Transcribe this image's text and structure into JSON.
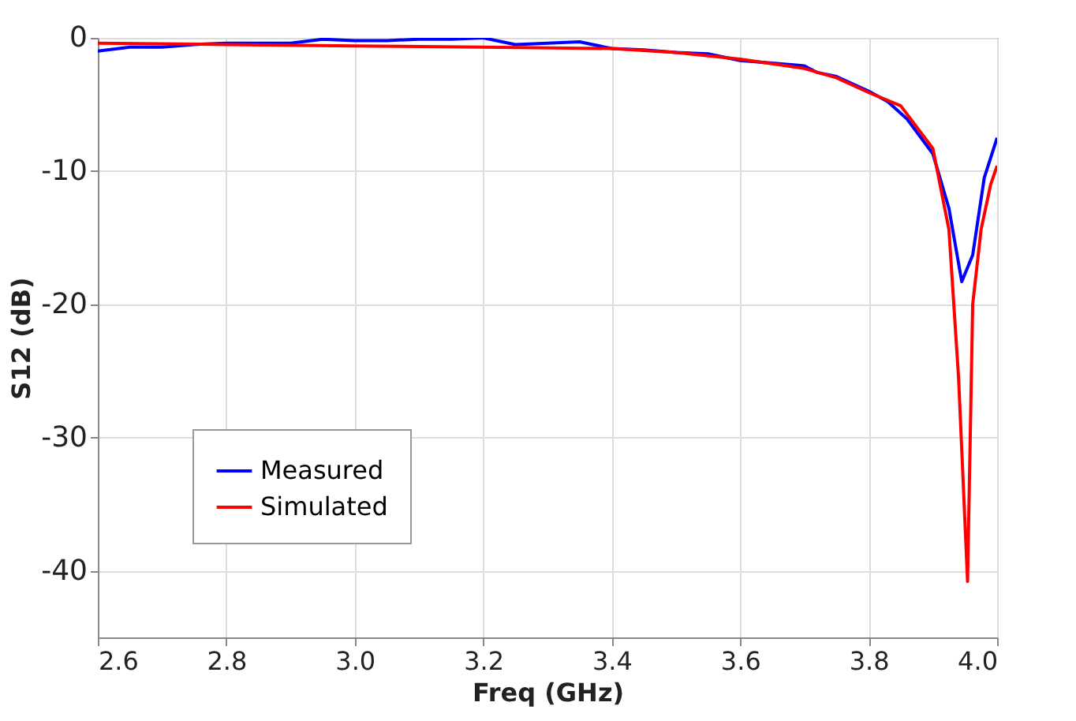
{
  "chart_data": {
    "type": "line",
    "xlabel": "Freq (GHz)",
    "ylabel": "S12 (dB)",
    "xlim": [
      2.6,
      4.0
    ],
    "xticks": [
      {
        "value": 2.6,
        "label": "2.6"
      },
      {
        "value": 2.8,
        "label": "2.8"
      },
      {
        "value": 3.0,
        "label": "3.0"
      },
      {
        "value": 3.2,
        "label": "3.2"
      },
      {
        "value": 3.4,
        "label": "3.4"
      },
      {
        "value": 3.6,
        "label": "3.6"
      },
      {
        "value": 3.8,
        "label": "3.8"
      },
      {
        "value": 4.0,
        "label": "4.0"
      }
    ],
    "ylim": [
      -45,
      0
    ],
    "yticks": [
      0,
      -10,
      -20,
      -30,
      -40
    ],
    "grid": true,
    "legend": "bottom left",
    "line_style": "solid",
    "marker": "none",
    "series": [
      {
        "name": "Measured",
        "color": "#0000ff",
        "x": [
          2.6,
          2.65,
          2.7,
          2.75,
          2.8,
          2.85,
          2.9,
          2.95,
          3.0,
          3.05,
          3.1,
          3.15,
          3.2,
          3.25,
          3.3,
          3.35,
          3.4,
          3.45,
          3.5,
          3.55,
          3.6,
          3.65,
          3.7,
          3.72,
          3.75,
          3.8,
          3.83,
          3.86,
          3.9,
          3.925,
          3.945,
          3.962,
          3.98,
          4.0
        ],
        "values": [
          -1.0,
          -0.7,
          -0.7,
          -0.5,
          -0.4,
          -0.4,
          -0.4,
          -0.1,
          -0.2,
          -0.2,
          -0.1,
          -0.1,
          0.0,
          -0.5,
          -0.4,
          -0.3,
          -0.8,
          -0.9,
          -1.1,
          -1.2,
          -1.7,
          -1.9,
          -2.1,
          -2.6,
          -2.9,
          -4.0,
          -4.8,
          -6.1,
          -8.7,
          -12.8,
          -18.3,
          -16.3,
          -10.5,
          -7.5
        ]
      },
      {
        "name": "Simulated",
        "color": "#ff0000",
        "x": [
          2.6,
          2.8,
          3.0,
          3.2,
          3.4,
          3.5,
          3.6,
          3.7,
          3.75,
          3.8,
          3.85,
          3.9,
          3.925,
          3.94,
          3.954,
          3.962,
          3.975,
          3.99,
          4.0
        ],
        "values": [
          -0.4,
          -0.5,
          -0.6,
          -0.7,
          -0.8,
          -1.1,
          -1.6,
          -2.3,
          -3.0,
          -4.1,
          -5.1,
          -8.3,
          -14.4,
          -25.5,
          -40.8,
          -20.0,
          -14.4,
          -11.0,
          -9.6
        ]
      }
    ]
  }
}
